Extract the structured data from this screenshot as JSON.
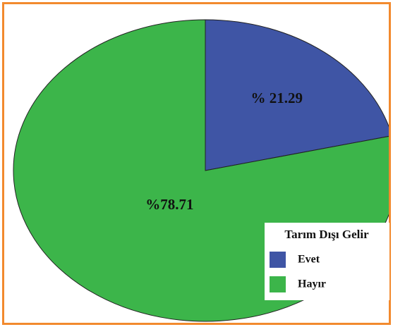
{
  "chart_data": {
    "type": "pie",
    "categories": [
      "Evet",
      "Hayır"
    ],
    "values": [
      21.29,
      78.71
    ],
    "value_labels": [
      "% 21.29",
      "%78.71"
    ],
    "colors": [
      "#3f55a5",
      "#3cb54a"
    ],
    "legend_title": "Tarım Dışı Gelir"
  }
}
